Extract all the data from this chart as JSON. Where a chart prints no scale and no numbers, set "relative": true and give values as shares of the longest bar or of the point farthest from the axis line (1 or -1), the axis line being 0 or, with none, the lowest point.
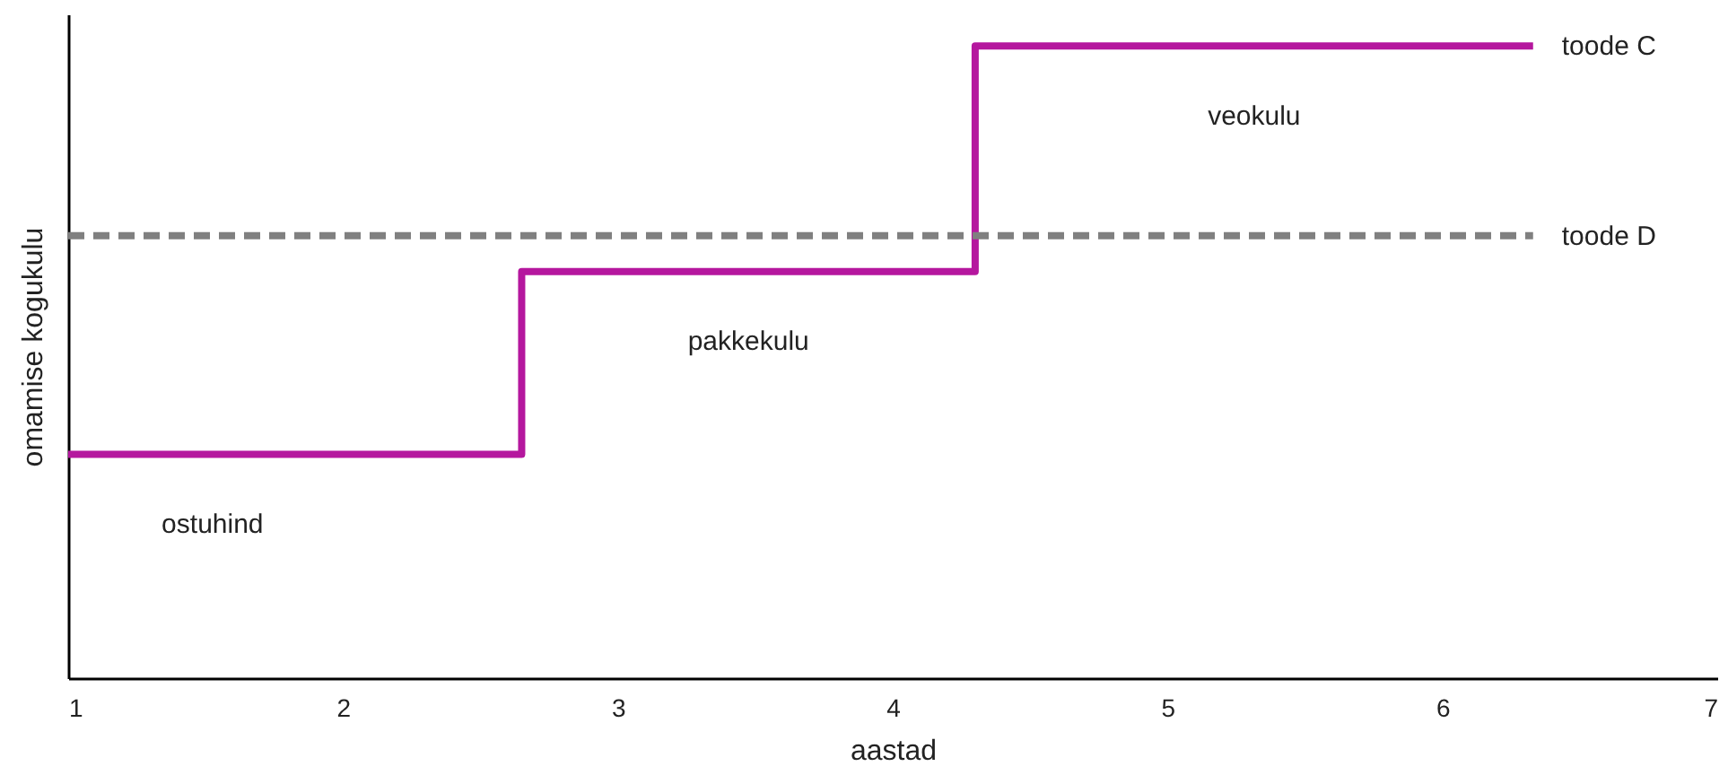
{
  "chart_data": {
    "type": "step",
    "xlabel": "aastad",
    "ylabel": "omamise kogukulu",
    "relative": true,
    "xlim": [
      1,
      7
    ],
    "xticks": [
      1,
      2,
      3,
      4,
      5,
      6,
      7
    ],
    "grid": false,
    "series": [
      {
        "name": "toode C",
        "color": "#b5179e",
        "x": [
          1,
          2.65,
          4.3,
          6.33
        ],
        "values": [
          0.354,
          0.643,
          1,
          1
        ]
      },
      {
        "name": "toode D",
        "line_style": "dashed",
        "color": "#808080",
        "x": [
          1,
          6.33
        ],
        "values": [
          0.7,
          0.7
        ]
      }
    ],
    "annotations": [
      "ostuhind",
      "pakkekulu",
      "veokulu"
    ]
  }
}
